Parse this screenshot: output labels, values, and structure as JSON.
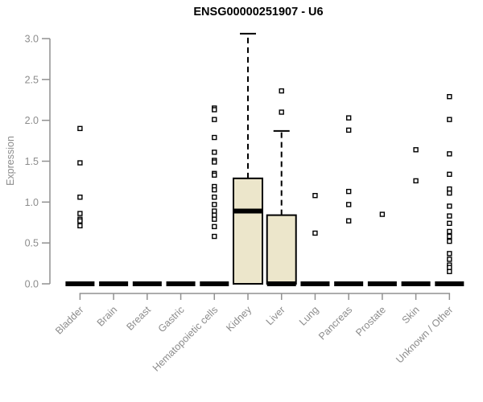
{
  "chart_data": {
    "type": "boxplot",
    "title": "ENSG00000251907 - U6",
    "ylabel": "Expression",
    "xlabel": "",
    "ylim": [
      0,
      3.0
    ],
    "yticks": [
      0.0,
      0.5,
      1.0,
      1.5,
      2.0,
      2.5,
      3.0
    ],
    "grid": false,
    "legend": "none",
    "colors": {
      "box_fill": "#ece6cb",
      "box_border": "#000000",
      "median": "#000000",
      "whisker": "#000000",
      "outlier_stroke": "#000000",
      "outlier_fill": "#ffffff",
      "axis_line": "#919191",
      "tick_text": "#8c8c8c",
      "title_text": "#000000"
    },
    "categories": [
      "Bladder",
      "Brain",
      "Breast",
      "Gastric",
      "Hematopoietic cells",
      "Kidney",
      "Liver",
      "Lung",
      "Pancreas",
      "Prostate",
      "Skin",
      "Unknown / Other"
    ],
    "boxes": [
      {
        "category": "Bladder",
        "q1": 0,
        "median": 0,
        "q3": 0,
        "whisker_low": 0,
        "whisker_high": 0,
        "outliers": [
          1.9,
          1.48,
          1.06,
          0.86,
          0.79,
          0.77,
          0.71
        ]
      },
      {
        "category": "Brain",
        "q1": 0,
        "median": 0,
        "q3": 0,
        "whisker_low": 0,
        "whisker_high": 0,
        "outliers": []
      },
      {
        "category": "Breast",
        "q1": 0,
        "median": 0,
        "q3": 0,
        "whisker_low": 0,
        "whisker_high": 0,
        "outliers": []
      },
      {
        "category": "Gastric",
        "q1": 0,
        "median": 0,
        "q3": 0,
        "whisker_low": 0,
        "whisker_high": 0,
        "outliers": []
      },
      {
        "category": "Hematopoietic cells",
        "q1": 0,
        "median": 0,
        "q3": 0,
        "whisker_low": 0,
        "whisker_high": 0,
        "outliers": [
          2.15,
          2.13,
          2.01,
          1.79,
          1.61,
          1.51,
          1.49,
          1.35,
          1.33,
          1.19,
          1.15,
          1.06,
          0.97,
          0.89,
          0.84,
          0.79,
          0.7,
          0.58
        ]
      },
      {
        "category": "Kidney",
        "q1": 0,
        "median": 0.89,
        "q3": 1.29,
        "whisker_low": 0,
        "whisker_high": 3.06,
        "outliers": []
      },
      {
        "category": "Liver",
        "q1": 0,
        "median": 0,
        "q3": 0.84,
        "whisker_low": 0,
        "whisker_high": 1.87,
        "outliers": [
          2.36,
          2.1
        ]
      },
      {
        "category": "Lung",
        "q1": 0,
        "median": 0,
        "q3": 0,
        "whisker_low": 0,
        "whisker_high": 0,
        "outliers": [
          1.08,
          0.62
        ]
      },
      {
        "category": "Pancreas",
        "q1": 0,
        "median": 0,
        "q3": 0,
        "whisker_low": 0,
        "whisker_high": 0,
        "outliers": [
          2.03,
          1.88,
          1.13,
          0.97,
          0.77
        ]
      },
      {
        "category": "Prostate",
        "q1": 0,
        "median": 0,
        "q3": 0,
        "whisker_low": 0,
        "whisker_high": 0,
        "outliers": [
          0.85
        ]
      },
      {
        "category": "Skin",
        "q1": 0,
        "median": 0,
        "q3": 0,
        "whisker_low": 0,
        "whisker_high": 0,
        "outliers": [
          1.64,
          1.26
        ]
      },
      {
        "category": "Unknown / Other",
        "q1": 0,
        "median": 0,
        "q3": 0,
        "whisker_low": 0,
        "whisker_high": 0,
        "outliers": [
          2.29,
          2.01,
          1.59,
          1.34,
          1.16,
          1.11,
          0.95,
          0.83,
          0.74,
          0.64,
          0.58,
          0.52,
          0.37,
          0.3,
          0.23,
          0.2,
          0.15
        ]
      }
    ]
  }
}
